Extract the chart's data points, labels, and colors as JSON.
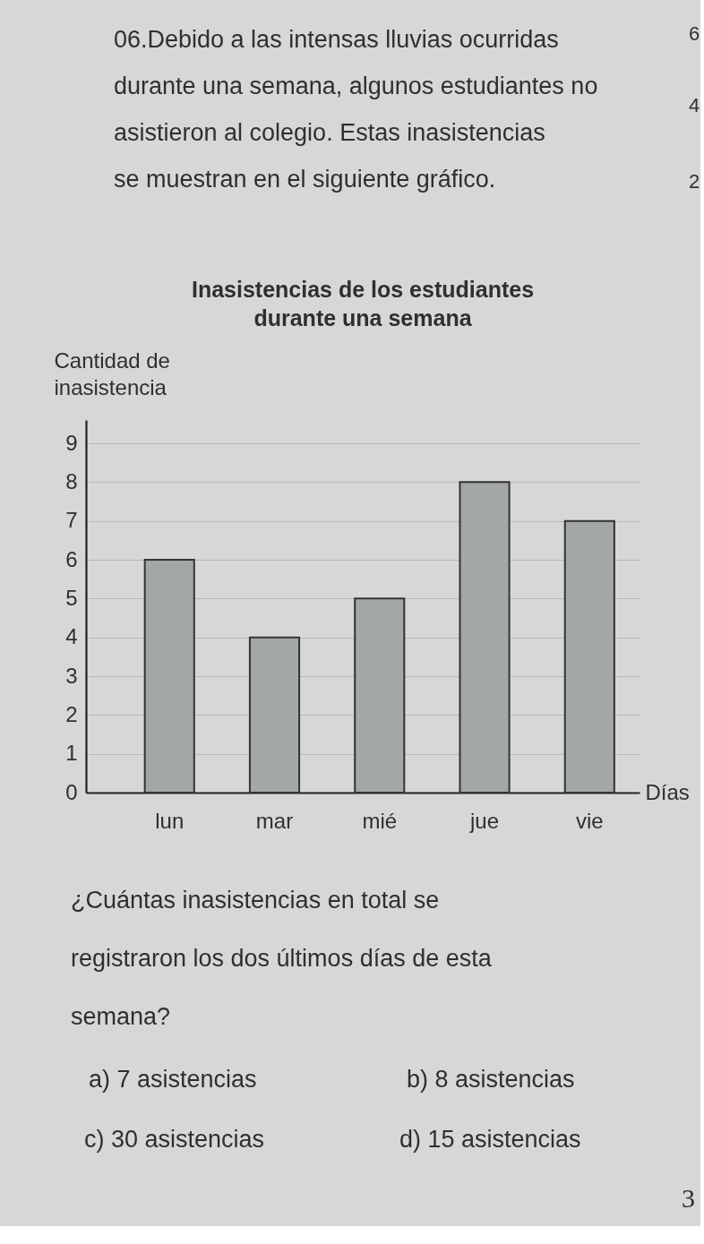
{
  "chart_data": {
    "type": "bar",
    "title": "Inasistencias de los estudiantes durante una semana",
    "xlabel": "Días",
    "ylabel": "Cantidad de inasistencia",
    "categories": [
      "lun",
      "mar",
      "mié",
      "jue",
      "vie"
    ],
    "values": [
      6,
      4,
      5,
      8,
      7
    ],
    "color": "#a3a8a6",
    "ylim": [
      0,
      9.6
    ],
    "yticks": [
      0,
      1,
      2,
      3,
      4,
      5,
      6,
      7,
      8,
      9
    ],
    "grid": "y",
    "annotations": [
      "06.Debido a las intensas lluvias ocurridas durante una semana, algunos estudiantes no asistieron al colegio. Estas inasistencias se muestran en el siguiente gráfico.",
      "¿Cuántas inasistencias en total se registraron los dos últimos días de esta semana?",
      "a) 7 asistencias",
      "b) 8 asistencias",
      "c) 30 asistencias",
      "d) 15 asistencias",
      "3",
      "6",
      "4",
      "2"
    ]
  }
}
